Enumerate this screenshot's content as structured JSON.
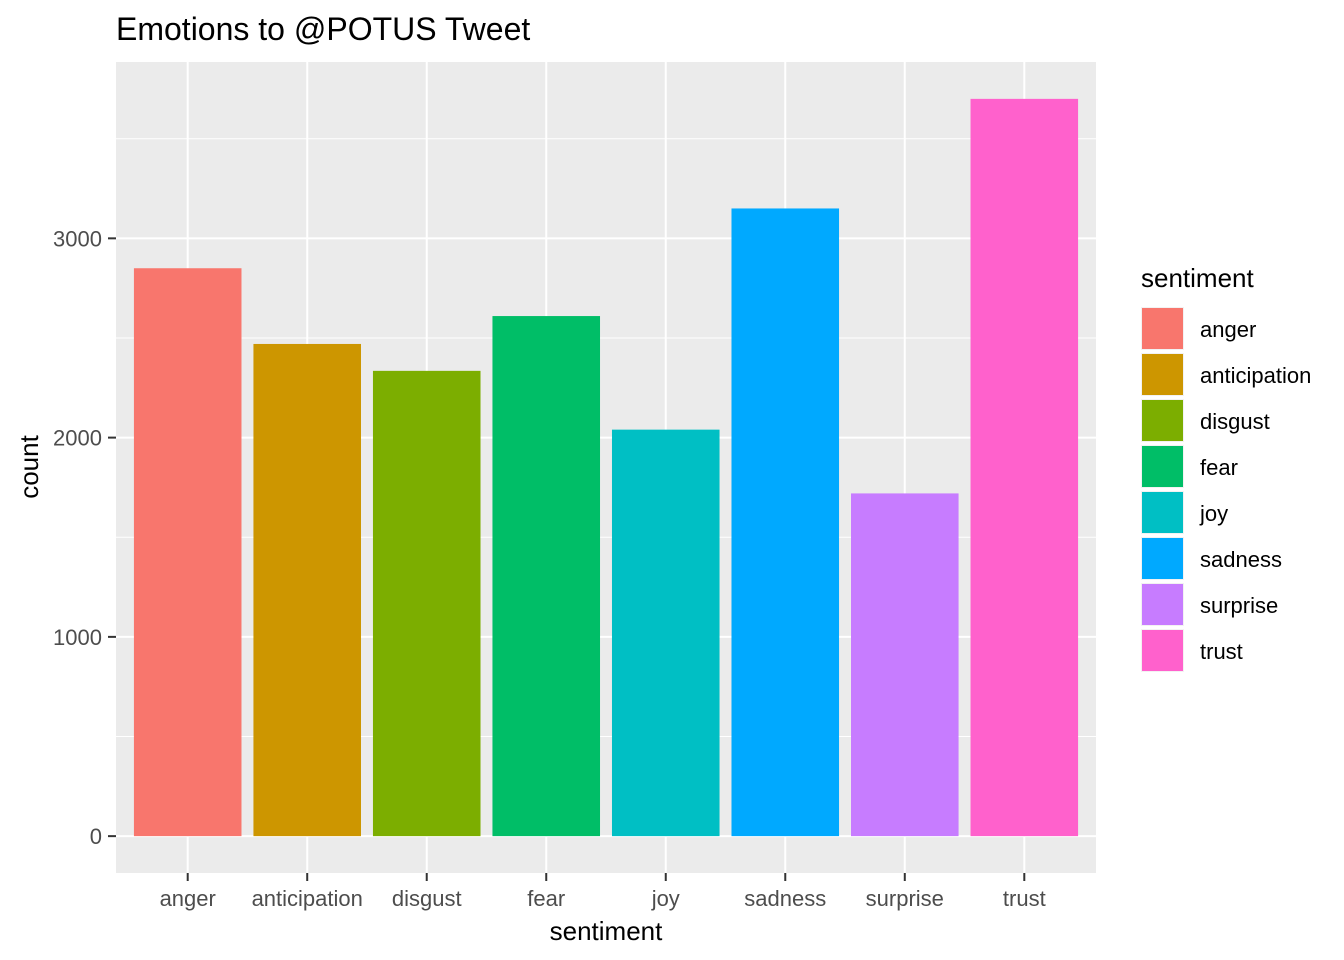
{
  "chart_data": {
    "type": "bar",
    "title": "Emotions to @POTUS Tweet",
    "xlabel": "sentiment",
    "ylabel": "count",
    "categories": [
      "anger",
      "anticipation",
      "disgust",
      "fear",
      "joy",
      "sadness",
      "surprise",
      "trust"
    ],
    "values": [
      2850,
      2470,
      2335,
      2610,
      2040,
      3150,
      1720,
      3700
    ],
    "colors": [
      "#F8766D",
      "#CD9600",
      "#7CAE00",
      "#00BE67",
      "#00BFC4",
      "#00A9FF",
      "#C77CFF",
      "#FF61CC"
    ],
    "y_ticks": [
      0,
      1000,
      2000,
      3000
    ],
    "ylim": [
      -185,
      3885
    ],
    "panel_background": "#EBEBEB",
    "grid": true,
    "legend": {
      "title": "sentiment",
      "position": "right",
      "entries": [
        "anger",
        "anticipation",
        "disgust",
        "fear",
        "joy",
        "sadness",
        "surprise",
        "trust"
      ]
    }
  }
}
